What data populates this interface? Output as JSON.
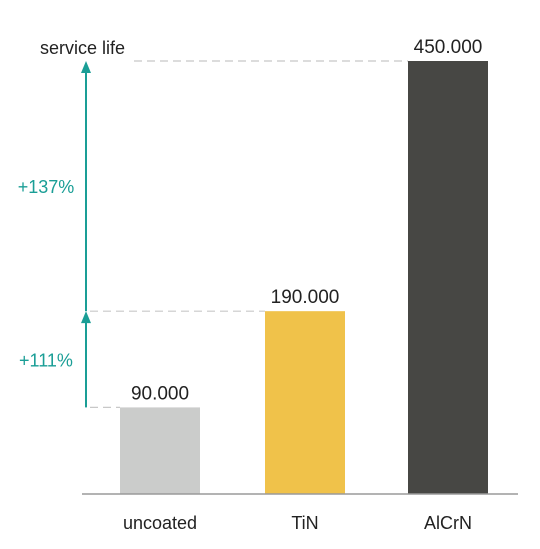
{
  "chart_data": {
    "type": "bar",
    "title": "service life",
    "categories": [
      "uncoated",
      "TiN",
      "AlCrN"
    ],
    "values": [
      90000,
      190000,
      450000
    ],
    "value_labels": [
      "90.000",
      "190.000",
      "450.000"
    ],
    "colors": [
      "#cbcccb",
      "#f0c24a",
      "#474744"
    ],
    "ylim": [
      0,
      450000
    ],
    "grid": false,
    "annotations": [
      {
        "text": "+111%",
        "from": 90000,
        "to": 190000
      },
      {
        "text": "+137%",
        "from": 190000,
        "to": 450000
      }
    ],
    "accent_color": "#1a9e96"
  }
}
